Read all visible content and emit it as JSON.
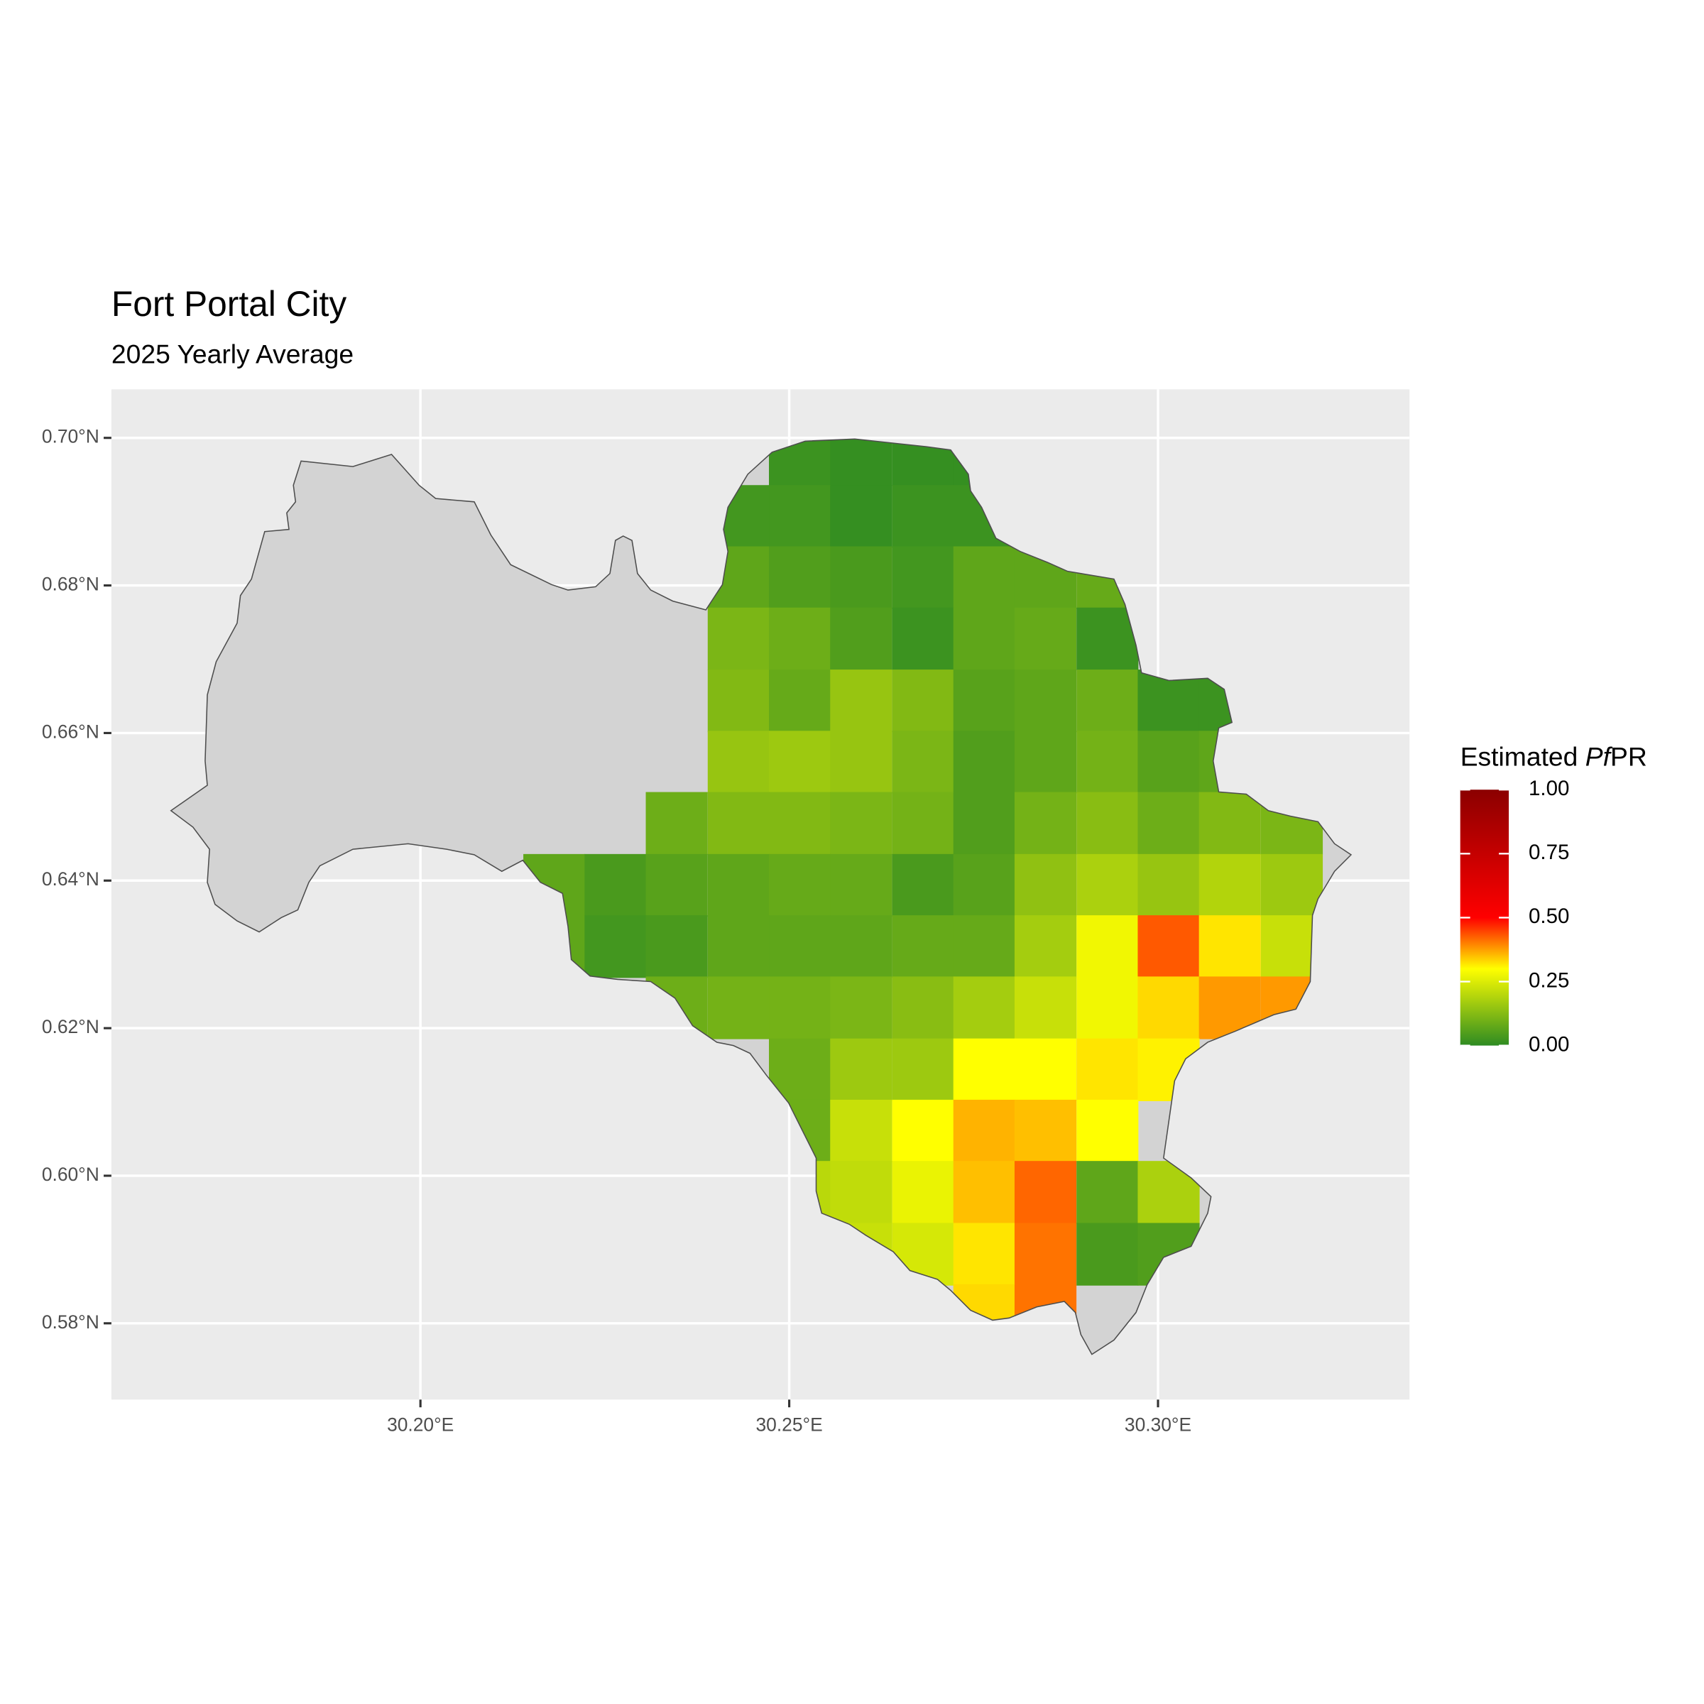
{
  "chart_data": {
    "type": "raster",
    "title": "Fort Portal City",
    "subtitle": "2025 Yearly Average",
    "legend_title": [
      "Estimated ",
      "Pf",
      "PR"
    ],
    "xlim": [
      30.1581,
      30.3341
    ],
    "ylim": [
      0.56966,
      0.70658
    ],
    "xticks": [
      {
        "value": 30.2,
        "label": "30.20°E"
      },
      {
        "value": 30.25,
        "label": "30.25°E"
      },
      {
        "value": 30.3,
        "label": "30.30°E"
      }
    ],
    "yticks": [
      {
        "value": 0.58,
        "label": "0.58°N"
      },
      {
        "value": 0.6,
        "label": "0.60°N"
      },
      {
        "value": 0.62,
        "label": "0.62°N"
      },
      {
        "value": 0.64,
        "label": "0.64°N"
      },
      {
        "value": 0.66,
        "label": "0.66°N"
      },
      {
        "value": 0.68,
        "label": "0.68°N"
      },
      {
        "value": 0.7,
        "label": "0.70°N"
      }
    ],
    "grid": true,
    "colorscale": [
      {
        "value": 0,
        "color": "#2e8b22"
      },
      {
        "value": 0.3,
        "color": "#ffff00"
      },
      {
        "value": 0.5,
        "color": "#ff0000"
      },
      {
        "value": 1,
        "color": "#8b0000"
      }
    ],
    "colorbar_lim": [
      0,
      1
    ],
    "colorbar_ticks": [
      {
        "value": 0,
        "label": "0.00"
      },
      {
        "value": 0.25,
        "label": "0.25"
      },
      {
        "value": 0.5,
        "label": "0.50"
      },
      {
        "value": 0.75,
        "label": "0.75"
      },
      {
        "value": 1,
        "label": "1.00"
      }
    ],
    "x": [
      30.2181,
      30.2264,
      30.2347,
      30.2431,
      30.2514,
      30.2597,
      30.2681,
      30.2764,
      30.2847,
      30.2931,
      30.3014,
      30.3097,
      30.3181
    ],
    "y": [
      0.6978,
      0.6894,
      0.6811,
      0.6728,
      0.6644,
      0.6561,
      0.6478,
      0.6394,
      0.6311,
      0.6228,
      0.6144,
      0.6061,
      0.5978,
      0.5894,
      0.5811
    ],
    "values": [
      [
        null,
        null,
        null,
        null,
        0.02,
        0.01,
        0.01,
        0.01,
        null,
        null,
        null,
        null,
        null
      ],
      [
        null,
        null,
        null,
        0.03,
        0.03,
        0.01,
        0.02,
        0.02,
        0.02,
        null,
        null,
        null,
        null
      ],
      [
        null,
        null,
        null,
        0.07,
        0.05,
        0.04,
        0.03,
        0.07,
        0.07,
        0.08,
        null,
        null,
        null
      ],
      [
        null,
        null,
        null,
        0.11,
        0.09,
        0.05,
        0.02,
        0.07,
        0.08,
        0.02,
        null,
        null,
        null
      ],
      [
        null,
        null,
        null,
        0.12,
        0.08,
        0.15,
        0.12,
        0.06,
        0.07,
        0.09,
        0.02,
        0.02,
        null
      ],
      [
        null,
        null,
        null,
        0.15,
        0.16,
        0.15,
        0.11,
        0.05,
        0.07,
        0.1,
        0.06,
        0.07,
        null
      ],
      [
        null,
        null,
        0.09,
        0.12,
        0.12,
        0.11,
        0.1,
        0.05,
        0.1,
        0.13,
        0.09,
        0.12,
        0.11
      ],
      [
        0.07,
        0.04,
        0.06,
        0.07,
        0.08,
        0.08,
        0.04,
        0.06,
        0.14,
        0.18,
        0.15,
        0.19,
        0.16
      ],
      [
        0.07,
        0.03,
        0.04,
        0.07,
        0.07,
        0.07,
        0.08,
        0.08,
        0.17,
        0.28,
        0.43,
        0.32,
        0.22
      ],
      [
        null,
        null,
        0.09,
        0.1,
        0.1,
        0.11,
        0.13,
        0.17,
        0.22,
        0.28,
        0.33,
        0.38,
        0.38
      ],
      [
        null,
        null,
        null,
        null,
        0.09,
        0.16,
        0.16,
        0.3,
        0.3,
        0.32,
        0.31,
        null,
        null
      ],
      [
        null,
        null,
        null,
        null,
        0.09,
        0.22,
        0.3,
        0.36,
        0.35,
        0.3,
        null,
        null,
        null
      ],
      [
        null,
        null,
        null,
        null,
        0.2,
        0.21,
        0.27,
        0.35,
        0.42,
        0.07,
        0.18,
        null,
        null
      ],
      [
        null,
        null,
        null,
        null,
        null,
        0.22,
        0.24,
        0.32,
        0.41,
        0.04,
        0.05,
        null,
        null
      ],
      [
        null,
        null,
        null,
        null,
        null,
        null,
        null,
        0.33,
        0.41,
        null,
        null,
        null,
        null
      ]
    ]
  }
}
